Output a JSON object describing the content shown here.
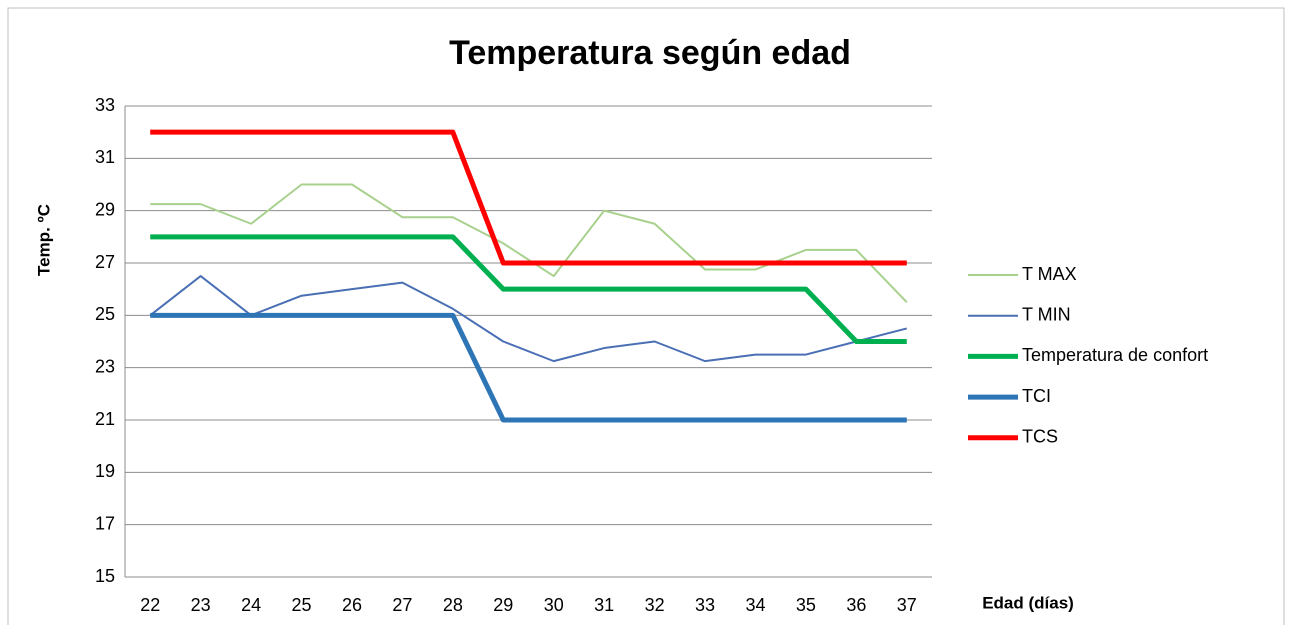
{
  "chart_data": {
    "type": "line",
    "title": "Temperatura según edad",
    "y_label": "Temp. ºC",
    "x_label": "Edad (días)",
    "categories": [
      "22",
      "23",
      "24",
      "25",
      "26",
      "27",
      "28",
      "29",
      "30",
      "31",
      "32",
      "33",
      "34",
      "35",
      "36",
      "37"
    ],
    "ylim": [
      15,
      33
    ],
    "yticks": [
      15,
      17,
      19,
      21,
      23,
      25,
      27,
      29,
      31,
      33
    ],
    "grid": true,
    "series": [
      {
        "name": "T MAX",
        "color": "#a9d18e",
        "values": [
          29.25,
          29.25,
          28.5,
          30,
          30,
          28.75,
          28.75,
          27.75,
          26.5,
          29,
          28.5,
          26.75,
          26.75,
          27.5,
          27.5,
          25.5
        ]
      },
      {
        "name": "T MIN",
        "color": "#4a6fb5",
        "values": [
          25,
          26.5,
          25,
          25.75,
          26,
          26.25,
          25.25,
          24,
          23.25,
          23.75,
          24,
          23.25,
          23.5,
          23.5,
          24,
          24.5
        ]
      },
      {
        "name": "Temperatura de confort",
        "color": "#00b050",
        "values": [
          28,
          28,
          28,
          28,
          28,
          28,
          28,
          26,
          26,
          26,
          26,
          26,
          26,
          26,
          24,
          24
        ]
      },
      {
        "name": "TCI",
        "color": "#2e75b6",
        "values": [
          25,
          25,
          25,
          25,
          25,
          25,
          25,
          21,
          21,
          21,
          21,
          21,
          21,
          21,
          21,
          21
        ]
      },
      {
        "name": "TCS",
        "color": "#ff0000",
        "values": [
          32,
          32,
          32,
          32,
          32,
          32,
          32,
          27,
          27,
          27,
          27,
          27,
          27,
          27,
          27,
          27
        ]
      }
    ]
  }
}
